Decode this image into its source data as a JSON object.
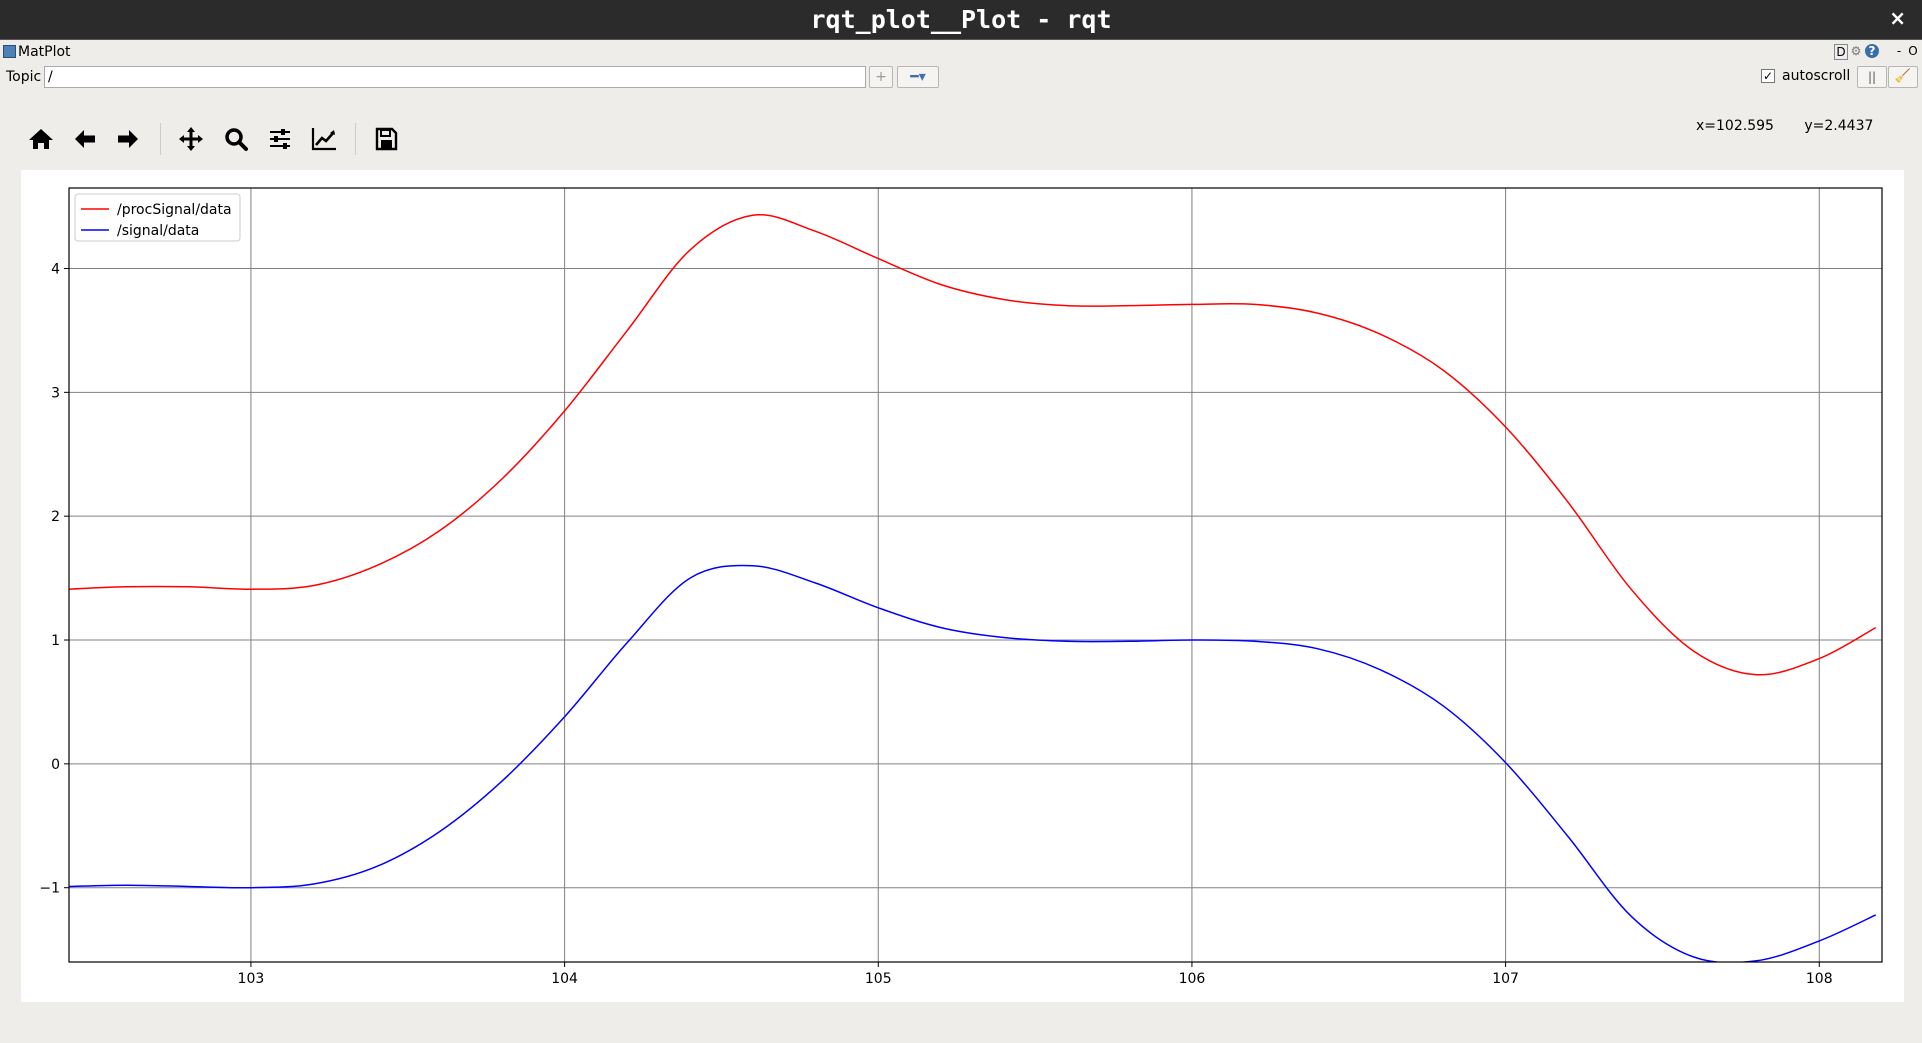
{
  "window": {
    "title": "rqt_plot__Plot - rqt",
    "close_glyph": "×"
  },
  "panel": {
    "name": "MatPlot",
    "buttons": [
      "D",
      "⚙",
      "?",
      "-",
      "O"
    ]
  },
  "topic": {
    "label": "Topic",
    "value": "/",
    "add_glyph": "+",
    "remove_glyph": "━▾",
    "autoscroll_label": "autoscroll",
    "autoscroll_checked": true,
    "pause_glyph": "||",
    "clear_glyph": "🧹"
  },
  "toolbar": {
    "items": [
      "home-icon",
      "back-icon",
      "forward-icon",
      "pan-icon",
      "zoom-icon",
      "subplots-config-icon",
      "edit-axes-icon",
      "save-icon"
    ]
  },
  "coords": {
    "x": "x=102.595",
    "y": "y=2.4437"
  },
  "chart_data": {
    "type": "line",
    "title": "",
    "xlabel": "",
    "ylabel": "",
    "xlim": [
      102.42,
      108.2
    ],
    "ylim": [
      -1.6,
      4.65
    ],
    "xticks": [
      103,
      104,
      105,
      106,
      107,
      108
    ],
    "yticks": [
      -1,
      0,
      1,
      2,
      3,
      4
    ],
    "ytick_labels": [
      "−1",
      "0",
      "1",
      "2",
      "3",
      "4"
    ],
    "grid": true,
    "legend_position": "top-left",
    "series": [
      {
        "name": "/procSignal/data",
        "color": "#ff0000",
        "x": [
          102.42,
          102.6,
          102.8,
          103.0,
          103.2,
          103.4,
          103.6,
          103.8,
          104.0,
          104.2,
          104.4,
          104.6,
          104.8,
          105.0,
          105.2,
          105.4,
          105.6,
          105.8,
          106.0,
          106.2,
          106.4,
          106.6,
          106.8,
          107.0,
          107.2,
          107.4,
          107.6,
          107.8,
          108.0,
          108.18
        ],
        "y": [
          1.41,
          1.43,
          1.43,
          1.41,
          1.44,
          1.6,
          1.88,
          2.3,
          2.85,
          3.5,
          4.15,
          4.43,
          4.3,
          4.08,
          3.87,
          3.75,
          3.7,
          3.7,
          3.71,
          3.71,
          3.64,
          3.47,
          3.18,
          2.72,
          2.11,
          1.41,
          0.91,
          0.72,
          0.85,
          1.1
        ]
      },
      {
        "name": "/signal/data",
        "color": "#0000ff",
        "x": [
          102.42,
          102.6,
          102.8,
          103.0,
          103.2,
          103.4,
          103.6,
          103.8,
          104.0,
          104.2,
          104.4,
          104.6,
          104.8,
          105.0,
          105.2,
          105.4,
          105.6,
          105.8,
          106.0,
          106.2,
          106.4,
          106.6,
          106.8,
          107.0,
          107.2,
          107.4,
          107.6,
          107.8,
          108.0,
          108.18
        ],
        "y": [
          -0.99,
          -0.98,
          -0.99,
          -1.0,
          -0.97,
          -0.83,
          -0.55,
          -0.14,
          0.38,
          0.98,
          1.5,
          1.6,
          1.46,
          1.26,
          1.1,
          1.02,
          0.99,
          0.99,
          1.0,
          0.99,
          0.93,
          0.76,
          0.47,
          0.01,
          -0.59,
          -1.23,
          -1.56,
          -1.59,
          -1.43,
          -1.22
        ]
      }
    ]
  }
}
